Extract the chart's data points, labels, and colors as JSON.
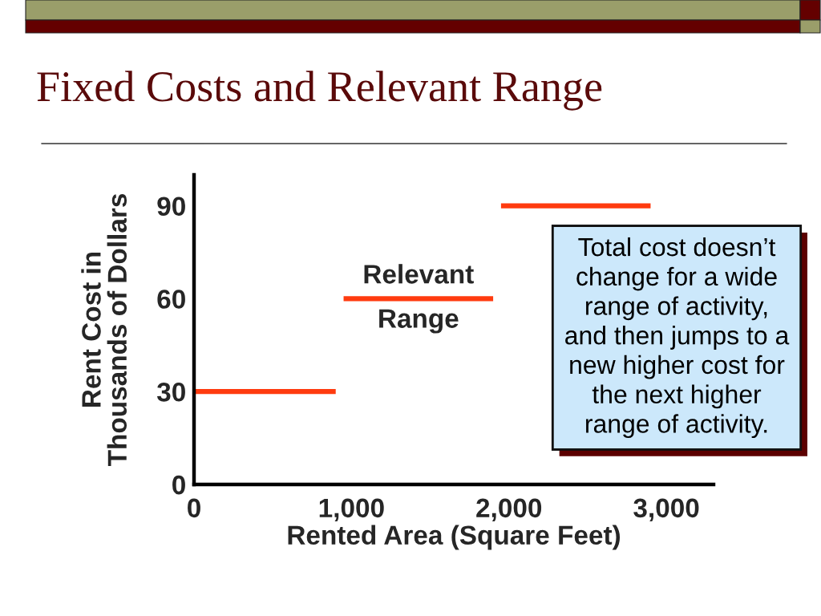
{
  "chart_data": {
    "type": "line",
    "title": "Fixed Costs and Relevant Range",
    "xlabel": "Rented Area (Square Feet)",
    "ylabel": "Rent Cost in\nThousands of Dollars",
    "series": [
      {
        "color": "#ff3b0f",
        "x": [
          0,
          900
        ],
        "values": [
          30,
          30
        ]
      },
      {
        "color": "#ff3b0f",
        "x": [
          950,
          1900
        ],
        "values": [
          60,
          60
        ]
      },
      {
        "color": "#ff3b0f",
        "x": [
          1950,
          2900
        ],
        "values": [
          90,
          90
        ]
      }
    ],
    "xlim": [
      0,
      3300
    ],
    "ylim": [
      0,
      100
    ],
    "xticks": [
      0,
      {
        "value": 1000,
        "label": "1,000"
      },
      {
        "value": 2000,
        "label": "2,000"
      },
      {
        "value": 3000,
        "label": "3,000"
      }
    ],
    "yticks": [
      0,
      30,
      60,
      90
    ],
    "annotations": [
      {
        "text": "Relevant\nRange",
        "x": 1425,
        "y": 60
      },
      "Total cost doesn’t\nchange for a wide\nrange of activity,\nand then jumps to a\nnew higher cost for\nthe next higher\nrange of activity."
    ]
  }
}
